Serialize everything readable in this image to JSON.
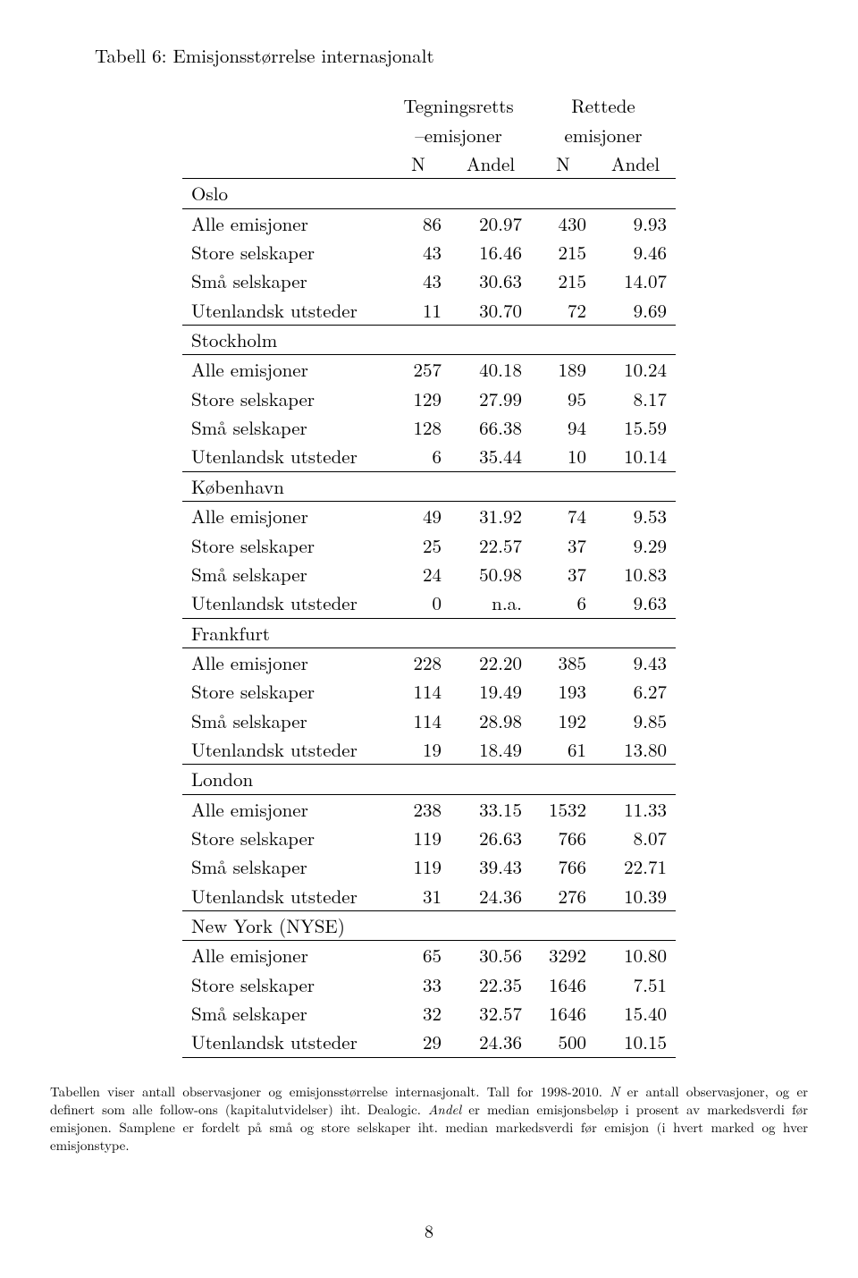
{
  "caption": "Tabell 6: Emisjonsstørrelse internasjonalt",
  "header": {
    "group1_line1": "Tegningsretts",
    "group1_line2": "–emisjoner",
    "group2_line1": "Rettede",
    "group2_line2": "emisjoner",
    "colN": "N",
    "colAndel": "Andel"
  },
  "sections": [
    {
      "name": "Oslo",
      "rows": [
        {
          "label": "Alle emisjoner",
          "n1": "86",
          "a1": "20.97",
          "n2": "430",
          "a2": "9.93"
        },
        {
          "label": "Store selskaper",
          "n1": "43",
          "a1": "16.46",
          "n2": "215",
          "a2": "9.46"
        },
        {
          "label": "Små selskaper",
          "n1": "43",
          "a1": "30.63",
          "n2": "215",
          "a2": "14.07"
        },
        {
          "label": "Utenlandsk utsteder",
          "n1": "11",
          "a1": "30.70",
          "n2": "72",
          "a2": "9.69"
        }
      ]
    },
    {
      "name": "Stockholm",
      "rows": [
        {
          "label": "Alle emisjoner",
          "n1": "257",
          "a1": "40.18",
          "n2": "189",
          "a2": "10.24"
        },
        {
          "label": "Store selskaper",
          "n1": "129",
          "a1": "27.99",
          "n2": "95",
          "a2": "8.17"
        },
        {
          "label": "Små selskaper",
          "n1": "128",
          "a1": "66.38",
          "n2": "94",
          "a2": "15.59"
        },
        {
          "label": "Utenlandsk utsteder",
          "n1": "6",
          "a1": "35.44",
          "n2": "10",
          "a2": "10.14"
        }
      ]
    },
    {
      "name": "København",
      "rows": [
        {
          "label": "Alle emisjoner",
          "n1": "49",
          "a1": "31.92",
          "n2": "74",
          "a2": "9.53"
        },
        {
          "label": "Store selskaper",
          "n1": "25",
          "a1": "22.57",
          "n2": "37",
          "a2": "9.29"
        },
        {
          "label": "Små selskaper",
          "n1": "24",
          "a1": "50.98",
          "n2": "37",
          "a2": "10.83"
        },
        {
          "label": "Utenlandsk utsteder",
          "n1": "0",
          "a1": "n.a.",
          "n2": "6",
          "a2": "9.63"
        }
      ]
    },
    {
      "name": "Frankfurt",
      "rows": [
        {
          "label": "Alle emisjoner",
          "n1": "228",
          "a1": "22.20",
          "n2": "385",
          "a2": "9.43"
        },
        {
          "label": "Store selskaper",
          "n1": "114",
          "a1": "19.49",
          "n2": "193",
          "a2": "6.27"
        },
        {
          "label": "Små selskaper",
          "n1": "114",
          "a1": "28.98",
          "n2": "192",
          "a2": "9.85"
        },
        {
          "label": "Utenlandsk utsteder",
          "n1": "19",
          "a1": "18.49",
          "n2": "61",
          "a2": "13.80"
        }
      ]
    },
    {
      "name": "London",
      "rows": [
        {
          "label": "Alle emisjoner",
          "n1": "238",
          "a1": "33.15",
          "n2": "1532",
          "a2": "11.33"
        },
        {
          "label": "Store selskaper",
          "n1": "119",
          "a1": "26.63",
          "n2": "766",
          "a2": "8.07"
        },
        {
          "label": "Små selskaper",
          "n1": "119",
          "a1": "39.43",
          "n2": "766",
          "a2": "22.71"
        },
        {
          "label": "Utenlandsk utsteder",
          "n1": "31",
          "a1": "24.36",
          "n2": "276",
          "a2": "10.39"
        }
      ]
    },
    {
      "name": "New York (NYSE)",
      "rows": [
        {
          "label": "Alle emisjoner",
          "n1": "65",
          "a1": "30.56",
          "n2": "3292",
          "a2": "10.80"
        },
        {
          "label": "Store selskaper",
          "n1": "33",
          "a1": "22.35",
          "n2": "1646",
          "a2": "7.51"
        },
        {
          "label": "Små selskaper",
          "n1": "32",
          "a1": "32.57",
          "n2": "1646",
          "a2": "15.40"
        },
        {
          "label": "Utenlandsk utsteder",
          "n1": "29",
          "a1": "24.36",
          "n2": "500",
          "a2": "10.15"
        }
      ]
    }
  ],
  "note_parts": {
    "t1": "Tabellen viser antall observasjoner og emisjonsstørrelse internasjonalt. Tall for 1998-2010. ",
    "i1": "N",
    "t2": " er antall observasjoner, og er definert som alle follow-ons (kapitalutvidelser) iht. Dealogic. ",
    "i2": "Andel",
    "t3": " er median emisjonsbeløp i prosent av markedsverdi før emisjonen. Samplene er fordelt på små og store selskaper iht. median markedsverdi før emisjon (i hvert marked og hver emisjonstype."
  },
  "page_number": "8"
}
